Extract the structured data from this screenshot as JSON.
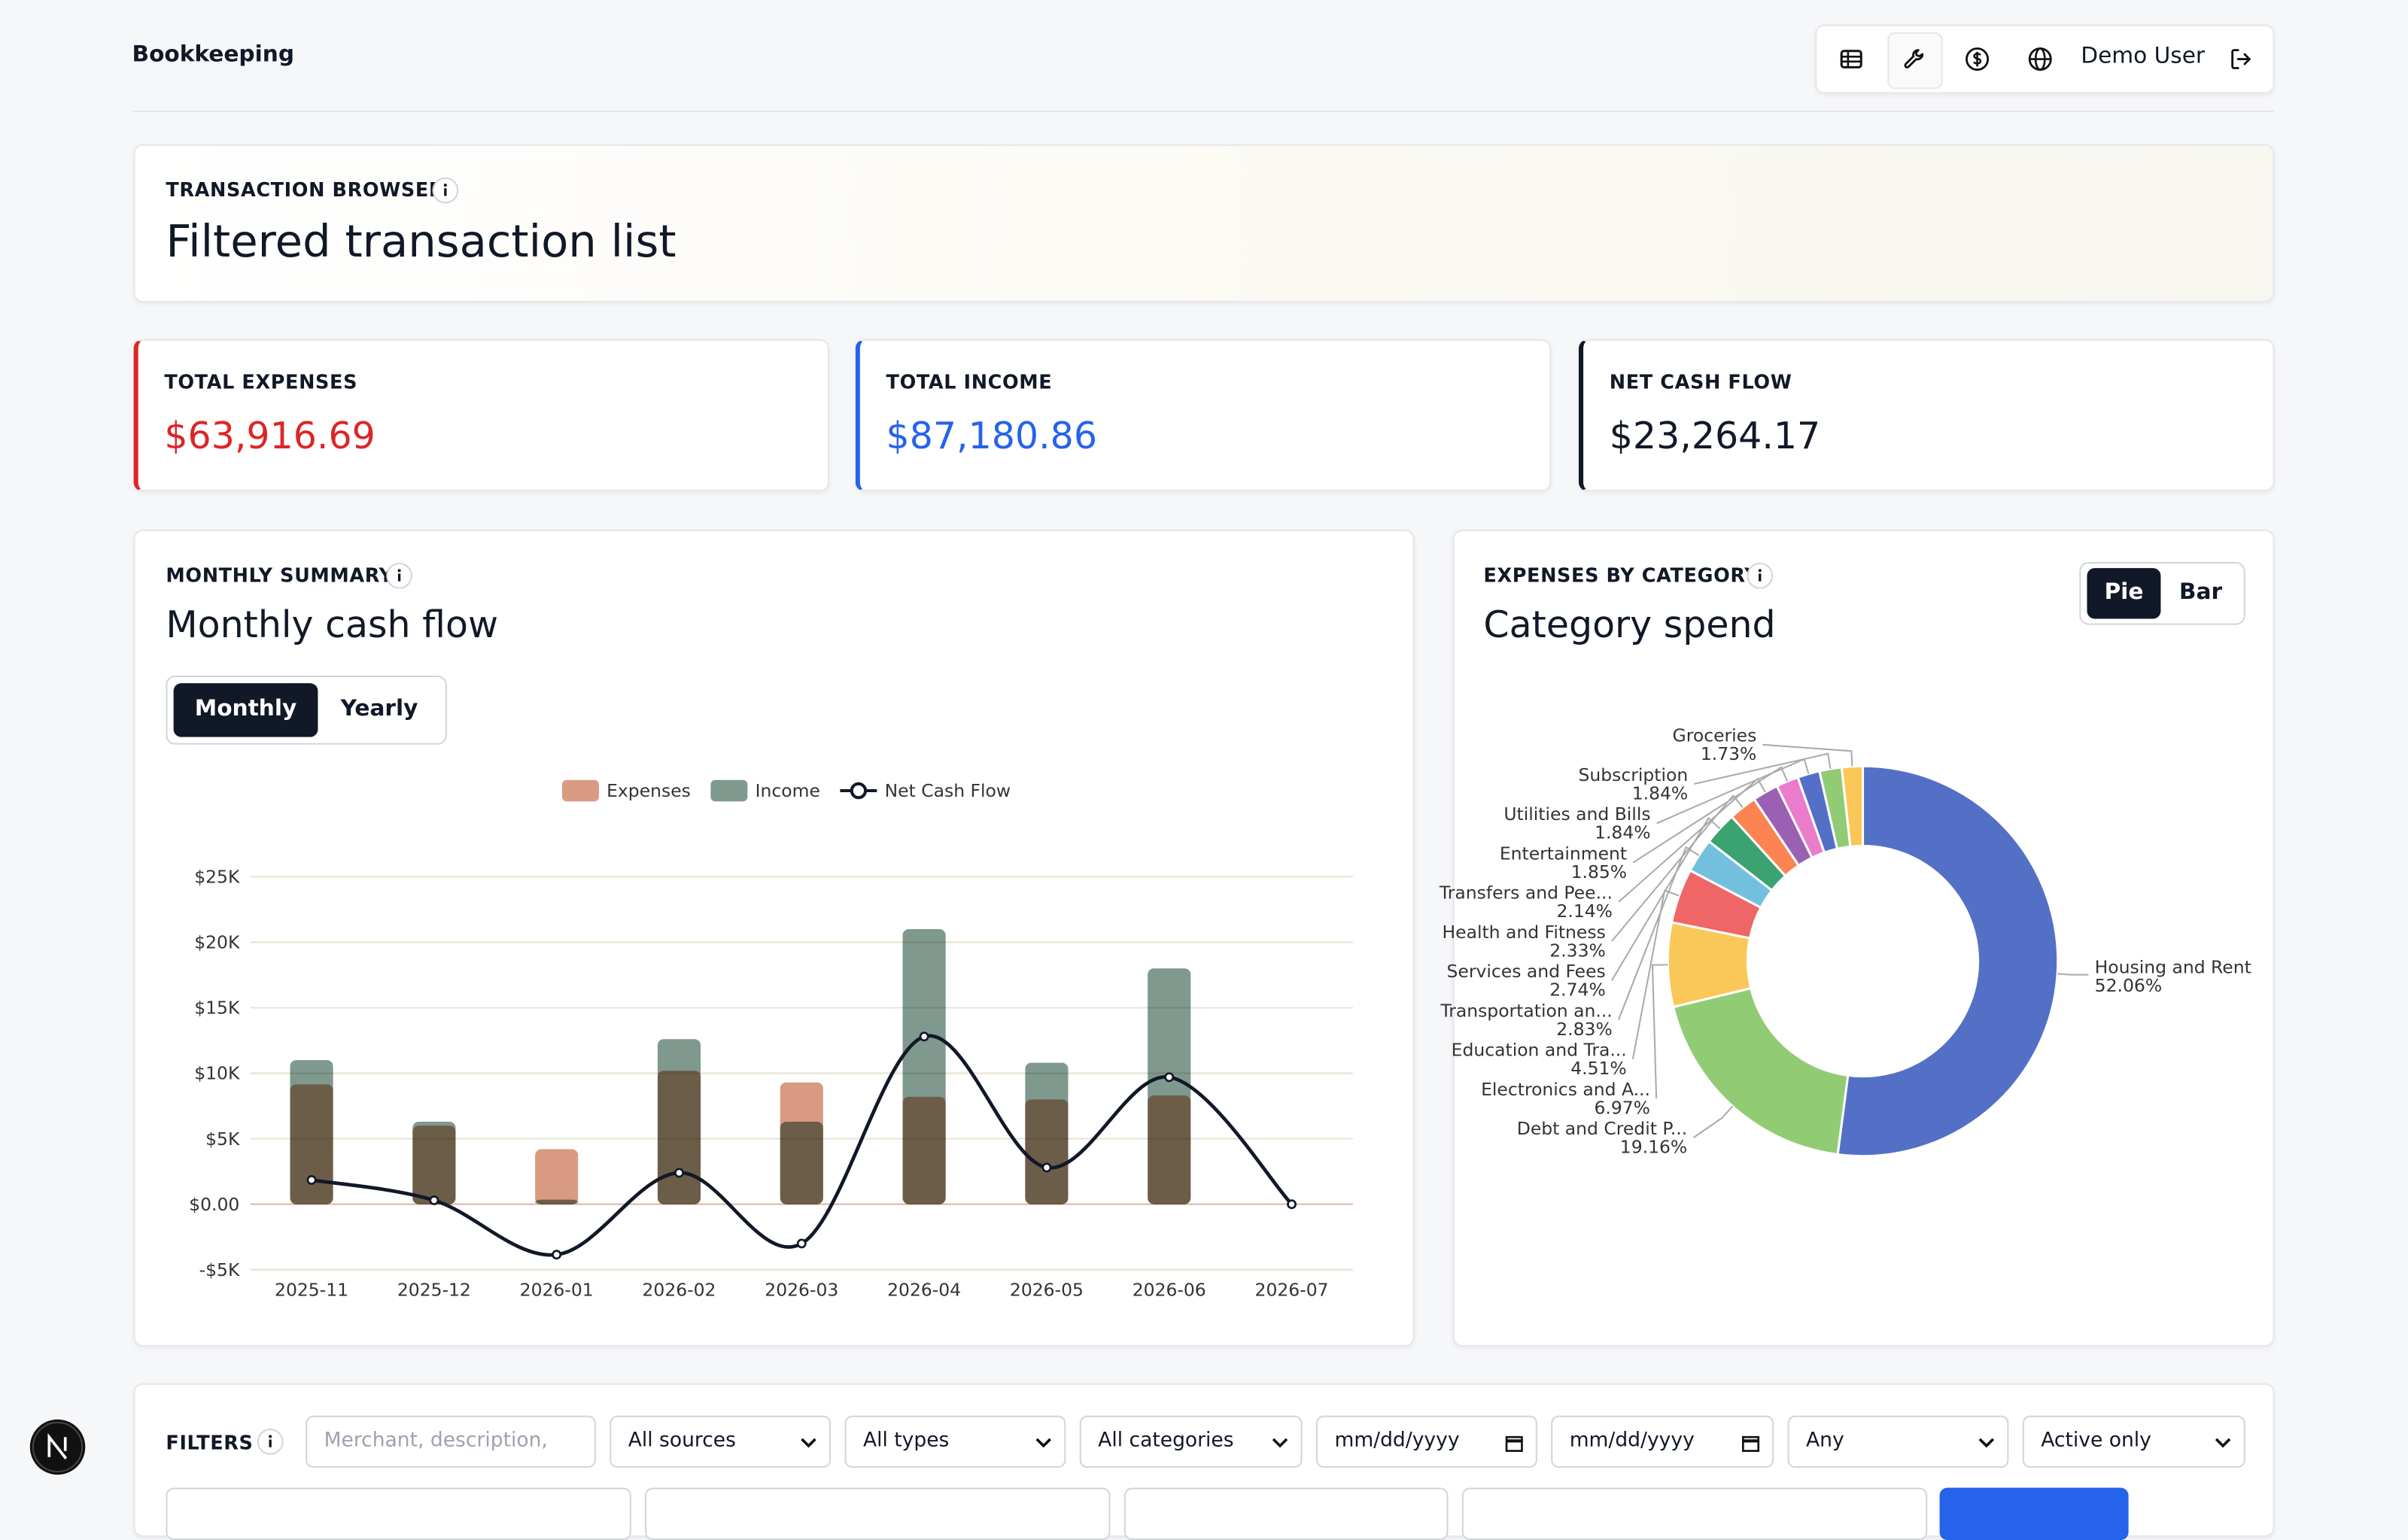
{
  "header": {
    "title": "Bookkeeping",
    "user": "Demo User"
  },
  "hero": {
    "eyebrow": "TRANSACTION BROWSER",
    "title": "Filtered transaction list"
  },
  "stats": [
    {
      "label": "TOTAL EXPENSES",
      "value": "$63,916.69"
    },
    {
      "label": "TOTAL INCOME",
      "value": "$87,180.86"
    },
    {
      "label": "NET CASH FLOW",
      "value": "$23,264.17"
    }
  ],
  "monthly": {
    "eyebrow": "MONTHLY SUMMARY",
    "title": "Monthly cash flow",
    "toggle": [
      "Monthly",
      "Yearly"
    ]
  },
  "category": {
    "eyebrow": "EXPENSES BY CATEGORY",
    "title": "Category spend",
    "toggle": [
      "Pie",
      "Bar"
    ]
  },
  "filters": {
    "label": "FILTERS",
    "search_placeholder": "Merchant, description, dates,",
    "selects": [
      "All sources",
      "All types",
      "All categories",
      "mm/dd/yyyy",
      "mm/dd/yyyy",
      "Any",
      "Active only"
    ]
  },
  "chart_data": [
    {
      "type": "bar",
      "categories": [
        "2025-11",
        "2025-12",
        "2026-01",
        "2026-02",
        "2026-03",
        "2026-04",
        "2026-05",
        "2026-06",
        "2026-07"
      ],
      "series": [
        {
          "name": "Expenses",
          "color": "#d99a82",
          "values": [
            9150,
            6000,
            4200,
            10200,
            9300,
            8200,
            8000,
            8300,
            0
          ]
        },
        {
          "name": "Income",
          "color": "#7f998f",
          "values": [
            11000,
            6300,
            350,
            12600,
            6300,
            21000,
            10800,
            18000,
            0
          ]
        },
        {
          "name": "Net Cash Flow",
          "type": "line",
          "color": "#111827",
          "values": [
            1850,
            300,
            -3850,
            2400,
            -3000,
            12800,
            2800,
            9700,
            0
          ]
        }
      ],
      "ylim": [
        -5000,
        26000
      ],
      "yticks": [
        {
          "value": -5000,
          "label": "-$5K"
        },
        {
          "value": 0,
          "label": "$0.00"
        },
        {
          "value": 5000,
          "label": "$5K"
        },
        {
          "value": 10000,
          "label": "$10K"
        },
        {
          "value": 15000,
          "label": "$15K"
        },
        {
          "value": 20000,
          "label": "$20K"
        },
        {
          "value": 25000,
          "label": "$25K"
        }
      ],
      "grid": true,
      "legend": "top"
    },
    {
      "type": "pie",
      "donut": true,
      "categories": [
        "Housing and Rent",
        "Debt and Credit P...",
        "Electronics and A...",
        "Education and Tra...",
        "Transportation an...",
        "Services and Fees",
        "Health and Fitness",
        "Transfers and Pee...",
        "Entertainment",
        "Utilities and Bills",
        "Subscription",
        "Groceries"
      ],
      "values": [
        52.06,
        19.16,
        6.97,
        4.51,
        2.83,
        2.74,
        2.33,
        2.14,
        1.85,
        1.84,
        1.84,
        1.73
      ],
      "value_labels": [
        "52.06%",
        "19.16%",
        "6.97%",
        "4.51%",
        "2.83%",
        "2.74%",
        "2.33%",
        "2.14%",
        "1.85%",
        "1.84%",
        "1.84%",
        "1.73%"
      ],
      "colors": [
        "#5470c6",
        "#91cc75",
        "#fac858",
        "#ee6666",
        "#73c0de",
        "#3ba272",
        "#fc8452",
        "#9a60b4",
        "#ea7ccc",
        "#5470c6",
        "#91cc75",
        "#fac858"
      ]
    }
  ]
}
